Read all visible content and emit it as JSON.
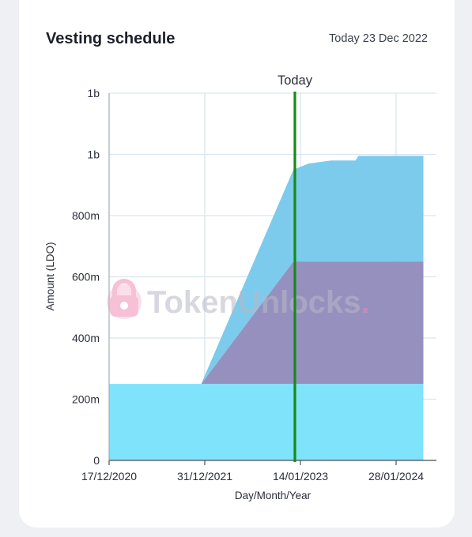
{
  "header": {
    "title": "Vesting schedule",
    "today_text": "Today 23 Dec 2022"
  },
  "watermark": {
    "part1": "Token",
    "part2": "Unlocks",
    "dot": "."
  },
  "chart_data": {
    "type": "area",
    "stacked": true,
    "xlabel": "Day/Month/Year",
    "ylabel": "Amount (LDO)",
    "x_ticks": [
      "17/12/2020",
      "31/12/2021",
      "14/01/2023",
      "28/01/2024"
    ],
    "y_ticks": [
      "0",
      "200m",
      "400m",
      "600m",
      "800m",
      "1b",
      "1b"
    ],
    "ylim": [
      0,
      1200000000
    ],
    "grid": true,
    "today_marker": {
      "label": "Today",
      "date": "2022-12-23",
      "color": "#178a17"
    },
    "series": [
      {
        "color": "#7fe3fb",
        "points": [
          [
            "2020-12-17",
            250000000
          ],
          [
            "2024-05-15",
            250000000
          ]
        ]
      },
      {
        "color": "#9690bf",
        "points": [
          [
            "2020-12-17",
            0
          ],
          [
            "2021-12-17",
            0
          ],
          [
            "2022-12-17",
            400000000
          ],
          [
            "2024-05-15",
            400000000
          ]
        ]
      },
      {
        "color": "#7ccbec",
        "points": [
          [
            "2020-12-17",
            0
          ],
          [
            "2021-12-17",
            0
          ],
          [
            "2022-12-17",
            300000000
          ],
          [
            "2023-02-15",
            320000000
          ],
          [
            "2023-05-15",
            330000000
          ],
          [
            "2023-08-20",
            330000000
          ],
          [
            "2023-09-01",
            345000000
          ],
          [
            "2024-05-15",
            345000000
          ]
        ]
      }
    ]
  }
}
